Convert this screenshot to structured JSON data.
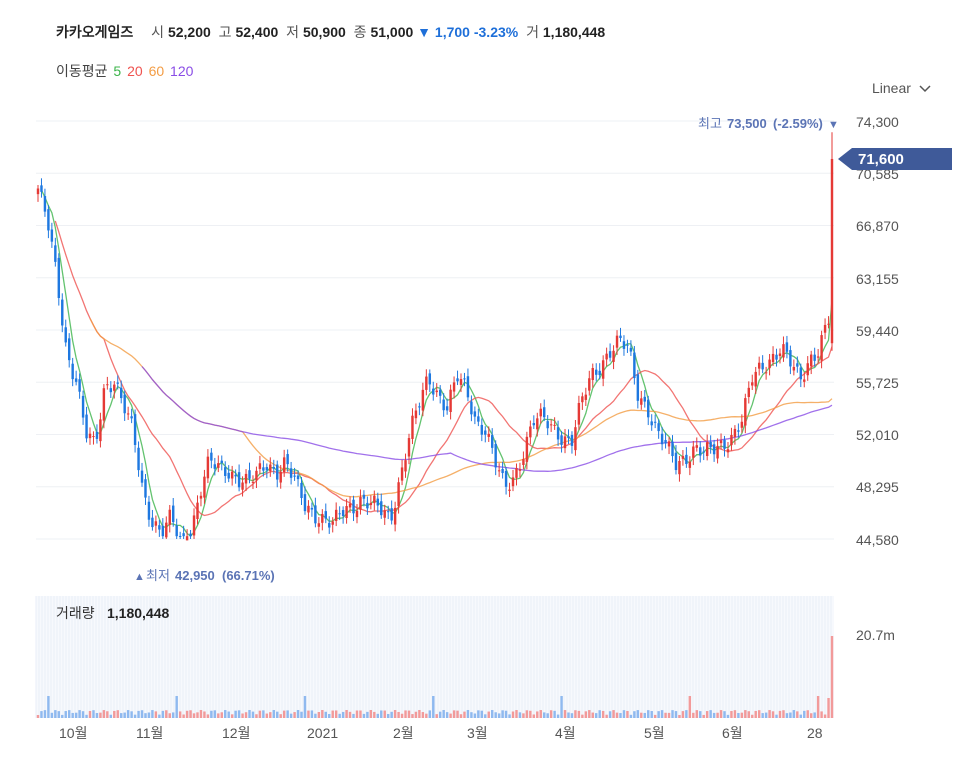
{
  "header": {
    "name": "카카오게임즈",
    "open_label": "시",
    "open": "52,200",
    "high_label": "고",
    "high": "52,400",
    "low_label": "저",
    "low": "50,900",
    "close_label": "종",
    "close": "51,000",
    "change_icon": "▼",
    "change": "1,700",
    "change_pct": "-3.23%",
    "volume_label": "거",
    "volume": "1,180,448"
  },
  "ma_legend": {
    "title": "이동평균",
    "items": [
      {
        "label": "5",
        "color": "#3cb44b"
      },
      {
        "label": "20",
        "color": "#ef5350"
      },
      {
        "label": "60",
        "color": "#f39c44"
      },
      {
        "label": "120",
        "color": "#8a4de6"
      }
    ]
  },
  "scale_selector": {
    "label": "Linear",
    "icon": "chevron-down-icon"
  },
  "price_axis": {
    "ticks": [
      "74,300",
      "70,585",
      "66,870",
      "63,155",
      "59,440",
      "55,725",
      "52,010",
      "48,295",
      "44,580"
    ]
  },
  "current_price": "71,600",
  "high_marker": {
    "label": "최고",
    "value": "73,500",
    "pct": "(-2.59%)",
    "icon": "▼"
  },
  "low_marker": {
    "label": "최저",
    "value": "42,950",
    "pct": "(66.71%)",
    "icon": "▲"
  },
  "volume_panel": {
    "label": "거래량",
    "value": "1,180,448",
    "axis_tick": "20.7m"
  },
  "x_axis": {
    "labels": [
      "10월",
      "11월",
      "12월",
      "2021",
      "2월",
      "3월",
      "4월",
      "5월",
      "6월",
      "28"
    ]
  },
  "colors": {
    "up": "#e53935",
    "down": "#1e78e0",
    "grid": "#eef0f4",
    "current_tag": "#3f5a99"
  },
  "chart_data": {
    "type": "candlestick",
    "ylim": [
      44580,
      74300
    ],
    "ma_periods": [
      5,
      20,
      60,
      120
    ],
    "x_categories": [
      "10월",
      "11월",
      "12월",
      "2021",
      "2월",
      "3월",
      "4월",
      "5월",
      "6월",
      "28"
    ],
    "close_series_approx": [
      69500,
      67000,
      63000,
      58000,
      56000,
      52000,
      51000,
      55500,
      56000,
      54000,
      52000,
      48000,
      46000,
      45000,
      46000,
      44000,
      45000,
      48000,
      50000,
      49500,
      49500,
      49000,
      48500,
      49000,
      50000,
      49500,
      50000,
      48500,
      47000,
      46500,
      46000,
      45500,
      46500,
      47000,
      47500,
      47000,
      46500,
      46000,
      49000,
      52000,
      54000,
      56000,
      55000,
      54000,
      56000,
      55000,
      53000,
      52500,
      50000,
      48000,
      49000,
      51000,
      53000,
      53000,
      52500,
      52000,
      51500,
      54000,
      56000,
      57000,
      58000,
      58500,
      58000,
      55000,
      54000,
      52000,
      51000,
      50000,
      50500,
      51000,
      50500,
      51000,
      51500,
      52000,
      53000,
      56000,
      57000,
      57500,
      58000,
      57000,
      56000,
      57500,
      58000,
      60000,
      71600
    ],
    "volume_axis_tick": "20.7m",
    "last_volume": 1180448,
    "high": {
      "value": 73500,
      "pct": -2.59
    },
    "low": {
      "value": 42950,
      "pct": 66.71
    }
  }
}
